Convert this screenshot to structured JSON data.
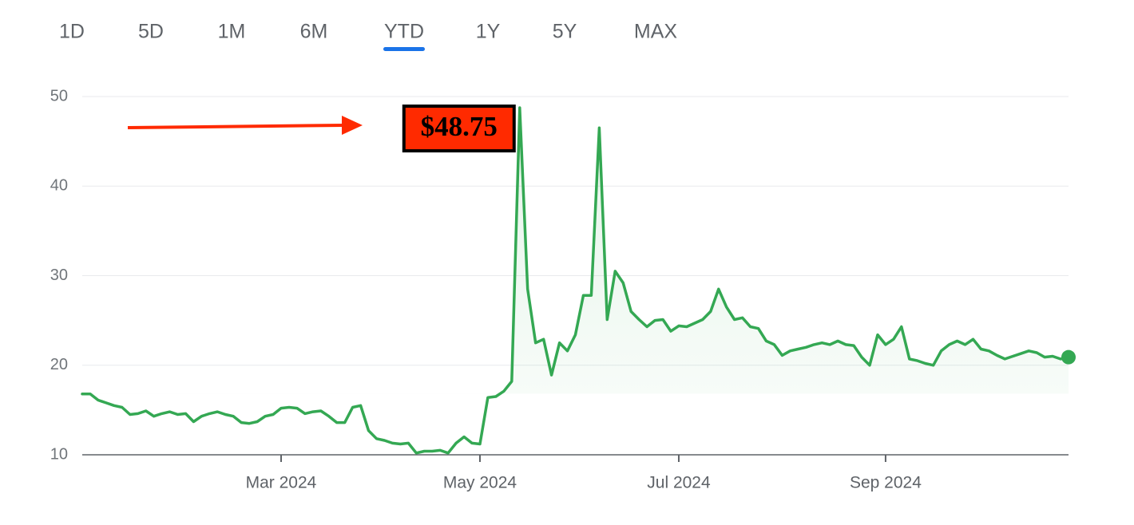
{
  "tabs": [
    "1D",
    "5D",
    "1M",
    "6M",
    "YTD",
    "1Y",
    "5Y",
    "MAX"
  ],
  "active_tab": 4,
  "chart_data": {
    "type": "line",
    "annotation": "$48.75",
    "categories": [
      null,
      null,
      null,
      null,
      null,
      null,
      null,
      null,
      null,
      null,
      null,
      null,
      null,
      null,
      null,
      null,
      null,
      null,
      null,
      null,
      null,
      null,
      null,
      null,
      null,
      "Mar 2024",
      null,
      null,
      null,
      null,
      null,
      null,
      null,
      null,
      null,
      null,
      null,
      null,
      null,
      null,
      null,
      null,
      null,
      null,
      null,
      null,
      null,
      null,
      null,
      null,
      "May 2024",
      null,
      null,
      null,
      null,
      null,
      null,
      null,
      null,
      null,
      null,
      null,
      null,
      null,
      null,
      null,
      null,
      null,
      null,
      null,
      null,
      null,
      null,
      null,
      null,
      "Jul 2024",
      null,
      null,
      null,
      null,
      null,
      null,
      null,
      null,
      null,
      null,
      null,
      null,
      null,
      null,
      null,
      null,
      null,
      null,
      null,
      null,
      null,
      null,
      null,
      null,
      null,
      "Sep 2024",
      null,
      null,
      null,
      null,
      null,
      null,
      null,
      null,
      null,
      null,
      null,
      null,
      null,
      null,
      null,
      null,
      null,
      null,
      null,
      null,
      null,
      null,
      null
    ],
    "series": [
      {
        "color": "#34a853",
        "values": [
          16.8,
          16.8,
          16.1,
          15.8,
          15.5,
          15.3,
          14.5,
          14.6,
          14.9,
          14.3,
          14.6,
          14.8,
          14.5,
          14.6,
          13.7,
          14.3,
          14.6,
          14.8,
          14.5,
          14.3,
          13.6,
          13.5,
          13.7,
          14.3,
          14.5,
          15.2,
          15.3,
          15.2,
          14.6,
          14.8,
          14.9,
          14.3,
          13.6,
          13.6,
          15.3,
          15.5,
          12.7,
          11.8,
          11.6,
          11.3,
          11.2,
          11.3,
          10.2,
          10.4,
          10.4,
          10.5,
          10.2,
          11.3,
          12.0,
          11.3,
          11.2,
          16.4,
          16.5,
          17.1,
          18.2,
          48.75,
          28.5,
          22.5,
          22.9,
          18.9,
          22.5,
          21.6,
          23.4,
          27.8,
          27.8,
          46.5,
          25.1,
          30.5,
          29.2,
          26.0,
          25.1,
          24.3,
          25.0,
          25.1,
          23.8,
          24.4,
          24.3,
          24.7,
          25.1,
          26.0,
          28.5,
          26.5,
          25.1,
          25.3,
          24.3,
          24.1,
          22.7,
          22.3,
          21.1,
          21.6,
          21.8,
          22.0,
          22.3,
          22.5,
          22.3,
          22.7,
          22.3,
          22.2,
          20.9,
          20.0,
          23.4,
          22.3,
          22.9,
          24.3,
          20.7,
          20.5,
          20.2,
          20.0,
          21.6,
          22.3,
          22.7,
          22.3,
          22.9,
          21.8,
          21.6,
          21.1,
          20.7,
          21.0,
          21.3,
          21.6,
          21.4,
          20.9,
          21.0,
          20.7,
          20.9
        ]
      }
    ],
    "ylim": [
      10,
      50
    ],
    "yticks": [
      10,
      20,
      30,
      40,
      50
    ],
    "grid": true
  }
}
